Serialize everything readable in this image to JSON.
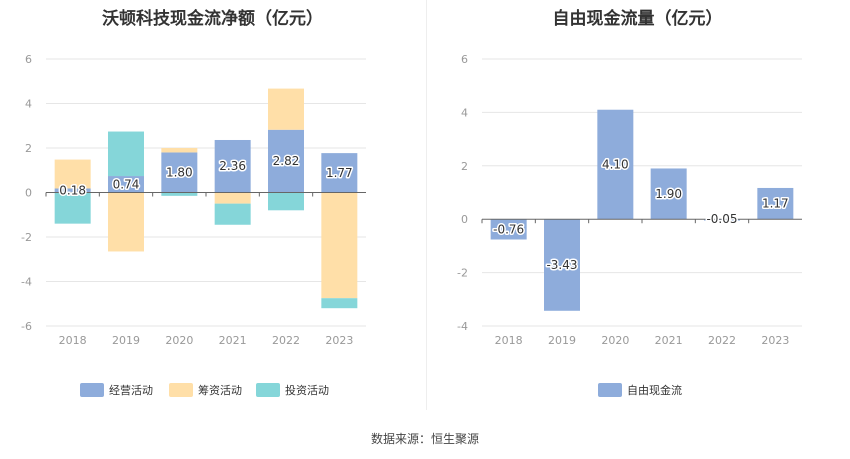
{
  "source_text": "数据来源：恒生聚源",
  "colors": {
    "operating": "#8eacdb",
    "financing": "#ffdfa8",
    "investing": "#85d6d9",
    "fcf": "#8eacdb",
    "grid": "#e6e6e6",
    "axis": "#666666",
    "tick": "#999999"
  },
  "chart_data": [
    {
      "type": "bar",
      "title": "沃顿科技现金流净额（亿元）",
      "stacked": true,
      "categories": [
        "2018",
        "2019",
        "2020",
        "2021",
        "2022",
        "2023"
      ],
      "ylim": [
        -6,
        6
      ],
      "yticks": [
        6,
        4,
        2,
        0,
        -2,
        -4,
        -6
      ],
      "grid": true,
      "legend_position": "bottom",
      "series": [
        {
          "name": "经营活动",
          "values": [
            0.18,
            0.74,
            1.8,
            2.36,
            2.82,
            1.77
          ],
          "labels": [
            "0.18",
            "0.74",
            "1.80",
            "2.36",
            "2.82",
            "1.77"
          ]
        },
        {
          "name": "筹资活动",
          "values": [
            1.3,
            -2.65,
            0.2,
            -0.5,
            1.85,
            -4.75
          ]
        },
        {
          "name": "投资活动",
          "values": [
            -1.4,
            2.0,
            -0.15,
            -0.95,
            -0.8,
            -0.45
          ]
        }
      ]
    },
    {
      "type": "bar",
      "title": "自由现金流量（亿元）",
      "categories": [
        "2018",
        "2019",
        "2020",
        "2021",
        "2022",
        "2023"
      ],
      "ylim": [
        -4,
        6
      ],
      "yticks": [
        6,
        4,
        2,
        0,
        -2,
        -4
      ],
      "grid": true,
      "legend_position": "bottom",
      "series": [
        {
          "name": "自由现金流",
          "values": [
            -0.76,
            -3.43,
            4.1,
            1.9,
            -0.05,
            1.17
          ],
          "labels": [
            "-0.76",
            "-3.43",
            "4.10",
            "1.90",
            "-0.05",
            "1.17"
          ]
        }
      ]
    }
  ]
}
